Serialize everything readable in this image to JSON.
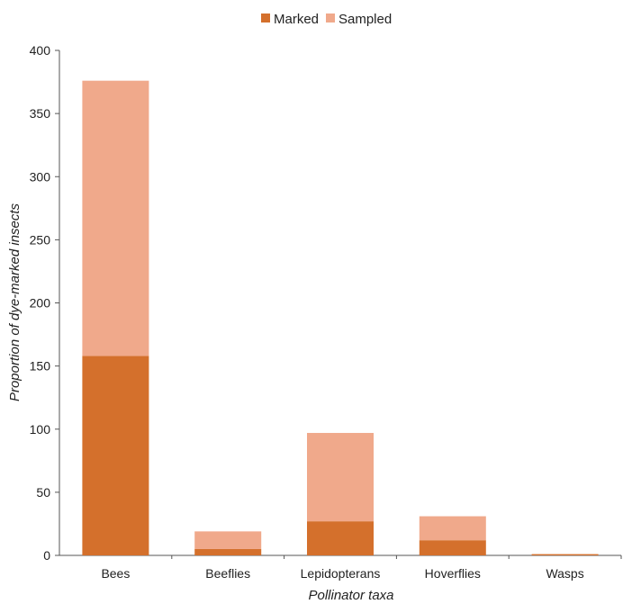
{
  "chart_data": {
    "type": "bar",
    "stacked": true,
    "categories": [
      "Bees",
      "Beeflies",
      "Lepidopterans",
      "Hoverflies",
      "Wasps"
    ],
    "series": [
      {
        "name": "Marked",
        "color": "#d4702c",
        "values": [
          158,
          5,
          27,
          12,
          1
        ]
      },
      {
        "name": "Sampled",
        "color": "#f0a98b",
        "values": [
          218,
          14,
          70,
          19,
          0
        ]
      }
    ],
    "xlabel": "Pollinator taxa",
    "ylabel": "Proportion of dye-marked insects",
    "ylim": [
      0,
      400
    ],
    "yticks": [
      0,
      50,
      100,
      150,
      200,
      250,
      300,
      350,
      400
    ],
    "legend_position": "top-center",
    "grid": false
  }
}
